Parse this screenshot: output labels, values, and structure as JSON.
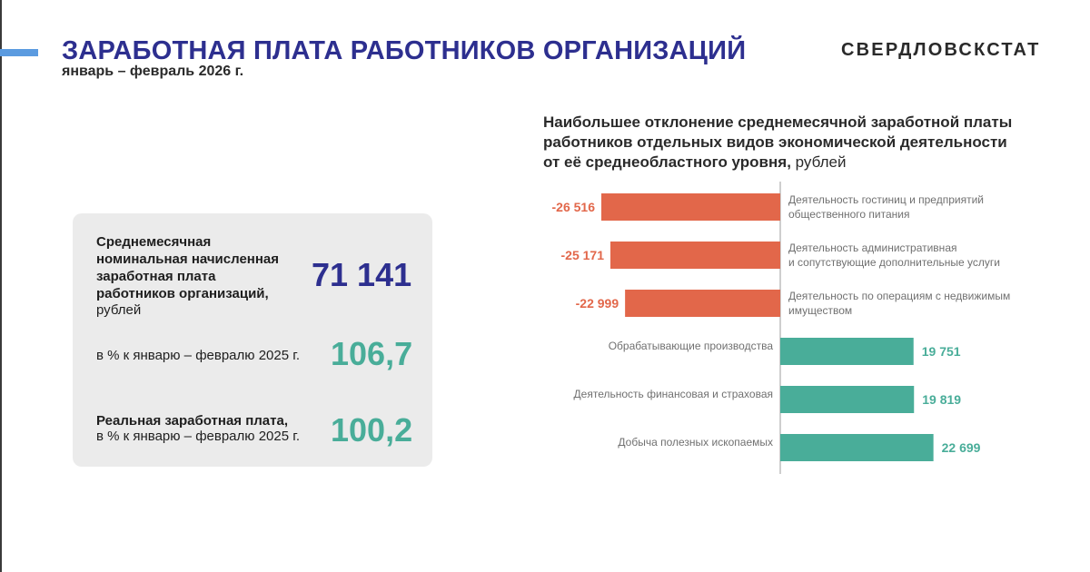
{
  "header": {
    "title": "ЗАРАБОТНАЯ ПЛАТА РАБОТНИКОВ ОРГАНИЗАЦИЙ",
    "subtitle": "январь – февраль 2026 г.",
    "brand": "СВЕРДЛОВСКСТАТ"
  },
  "summary": {
    "avg_label_lines": [
      "Среднемесячная",
      "номинальная начисленная",
      "заработная плата",
      "работников организаций,"
    ],
    "avg_unit": "рублей",
    "avg_value": "71 141",
    "index_label": "в % к январю – февралю 2025 г.",
    "index_value": "106,7",
    "real_label_line1": "Реальная заработная плата,",
    "real_label_line2": "в % к январю – февралю 2025 г.",
    "real_value": "100,2"
  },
  "colors": {
    "title": "#2d2f8f",
    "accent": "#5b9be0",
    "negative": "#e2674a",
    "positive": "#49ad99",
    "avg_value": "#2d2f8f",
    "index_value": "#49ad99",
    "label_text": "#707070"
  },
  "chart_data": {
    "type": "bar",
    "orientation": "horizontal",
    "title_lines": [
      "Наибольшее отклонение среднемесячной заработной платы",
      "работников отдельных видов экономической деятельности",
      "от её среднеобластного уровня,"
    ],
    "title_unit": "рублей",
    "categories": [
      [
        "Деятельность  гостиниц и предприятий",
        "общественного питания"
      ],
      [
        "Деятельность административная",
        "и сопутствующие дополнительные услуги"
      ],
      [
        "Деятельность по операциям с недвижимым",
        "имуществом"
      ],
      [
        "Обрабатывающие производства"
      ],
      [
        "Деятельность финансовая и страховая"
      ],
      [
        "Добыча полезных ископаемых"
      ]
    ],
    "values": [
      -26516,
      -25171,
      -22999,
      19751,
      19819,
      22699
    ],
    "value_labels": [
      "-26 516",
      "-25 171",
      "-22 999",
      "19 751",
      "19 819",
      "22 699"
    ],
    "xlim": [
      -27000,
      27000
    ],
    "grid": false,
    "legend": "none"
  }
}
